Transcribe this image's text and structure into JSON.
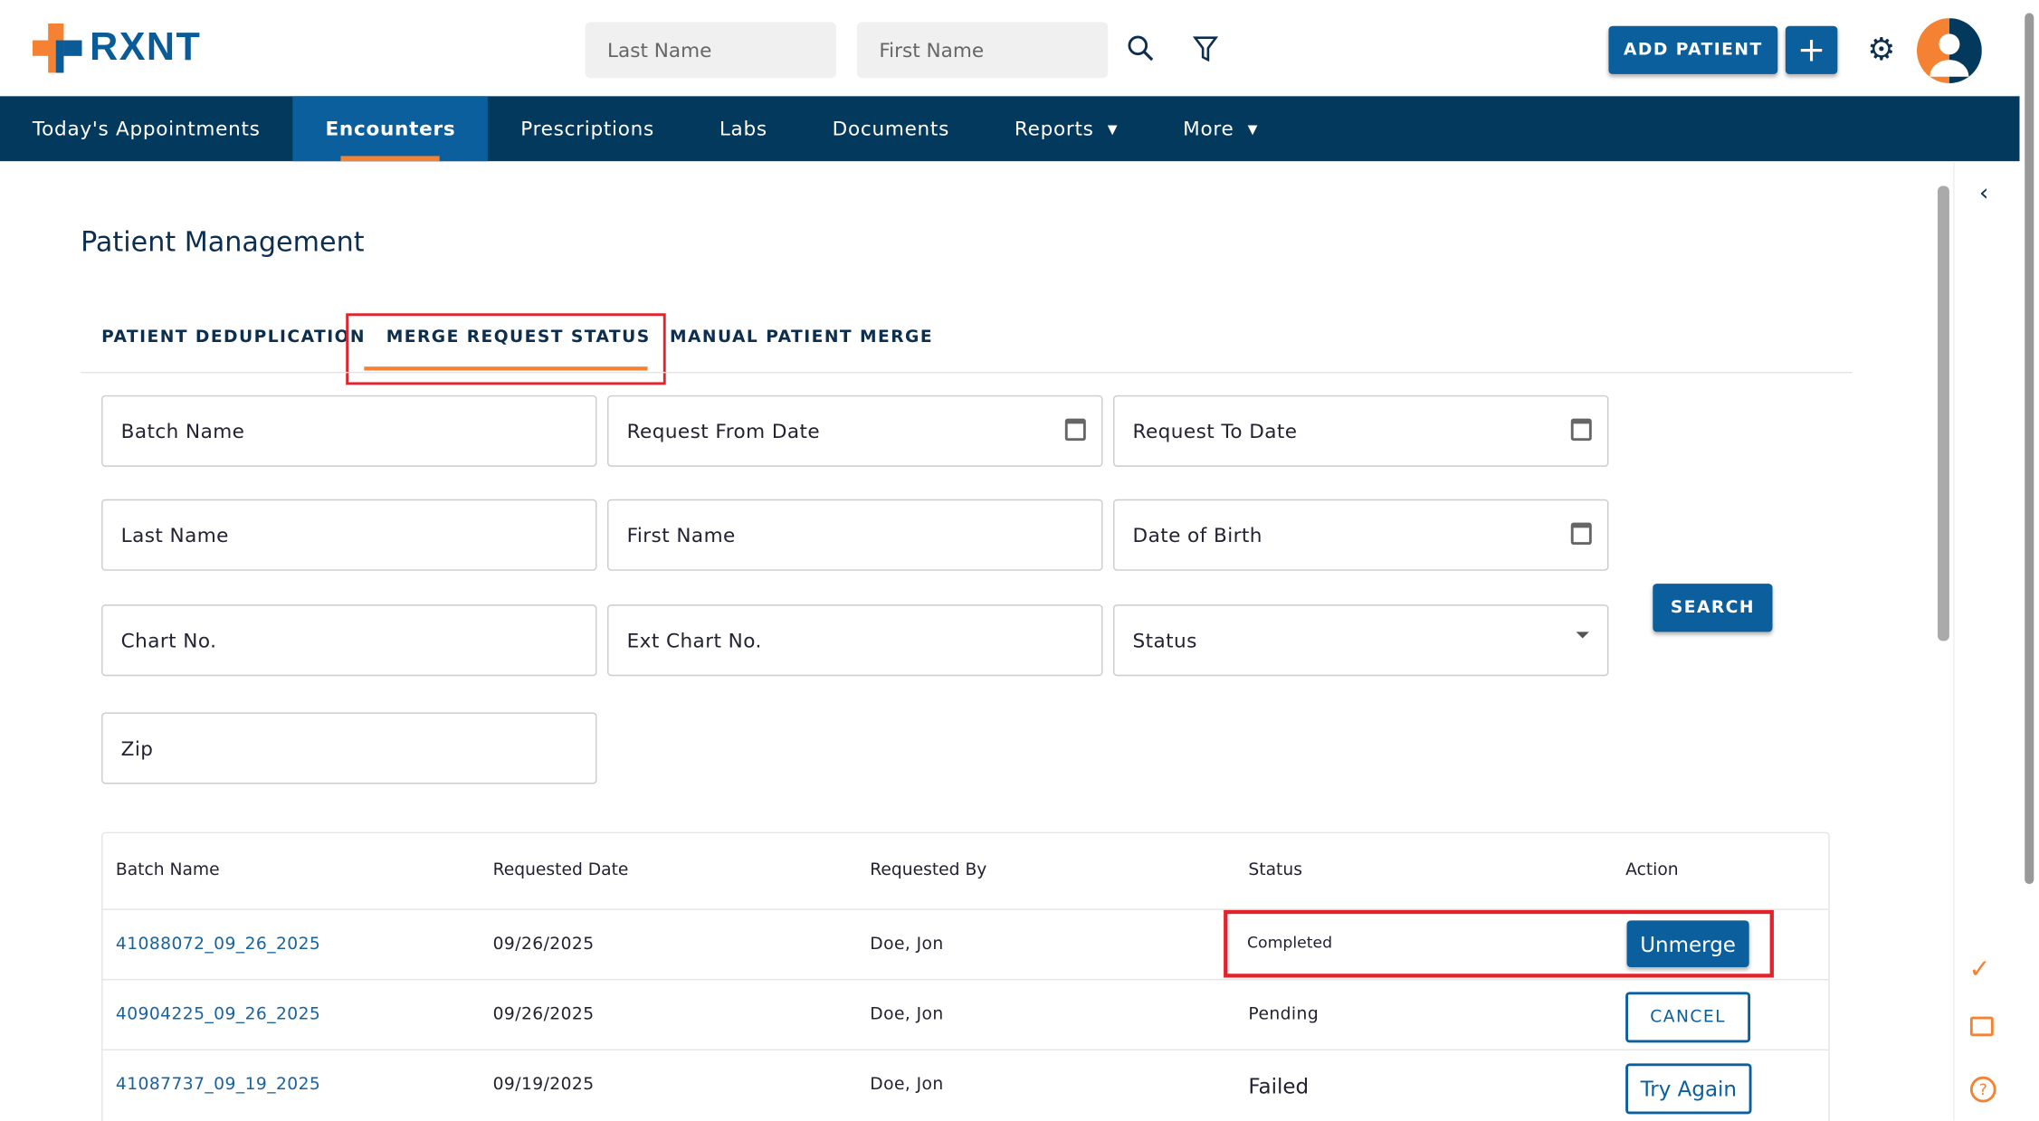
{
  "header": {
    "brand": "RXNT",
    "search_last_placeholder": "Last Name",
    "search_first_placeholder": "First Name",
    "add_patient": "ADD PATIENT",
    "add_plus": "+"
  },
  "nav": [
    {
      "label": "Today's Appointments"
    },
    {
      "label": "Encounters",
      "active": true
    },
    {
      "label": "Prescriptions"
    },
    {
      "label": "Labs"
    },
    {
      "label": "Documents"
    },
    {
      "label": "Reports",
      "chevron": "▾"
    },
    {
      "label": "More",
      "chevron": "▾"
    }
  ],
  "page": {
    "title": "Patient Management"
  },
  "tabs": [
    "PATIENT DEDUPLICATION",
    "MERGE REQUEST STATUS",
    "MANUAL PATIENT MERGE"
  ],
  "filters": {
    "batch_name": "Batch Name",
    "from_date": "Request From Date",
    "to_date": "Request To Date",
    "last_name": "Last Name",
    "first_name": "First Name",
    "dob": "Date of Birth",
    "chart_no": "Chart No.",
    "ext_chart_no": "Ext Chart No.",
    "status": "Status",
    "zip": "Zip",
    "search": "SEARCH"
  },
  "table": {
    "headers": [
      "Batch Name",
      "Requested Date",
      "Requested By",
      "Status",
      "Action"
    ],
    "rows": [
      {
        "batch": "41088072_09_26_2025",
        "date": "09/26/2025",
        "by": "Doe, Jon",
        "status": "Completed",
        "action": "Unmerge"
      },
      {
        "batch": "40904225_09_26_2025",
        "date": "09/26/2025",
        "by": "Doe, Jon",
        "status": "Pending",
        "action": "CANCEL"
      },
      {
        "batch": "41087737_09_19_2025",
        "date": "09/19/2025",
        "by": "Doe, Jon",
        "status": "Failed",
        "action": "Try Again"
      }
    ]
  },
  "colors": {
    "navy": "#04395e",
    "primary": "#0a5f9c",
    "accent": "#f58233",
    "highlight": "#e3222b"
  }
}
